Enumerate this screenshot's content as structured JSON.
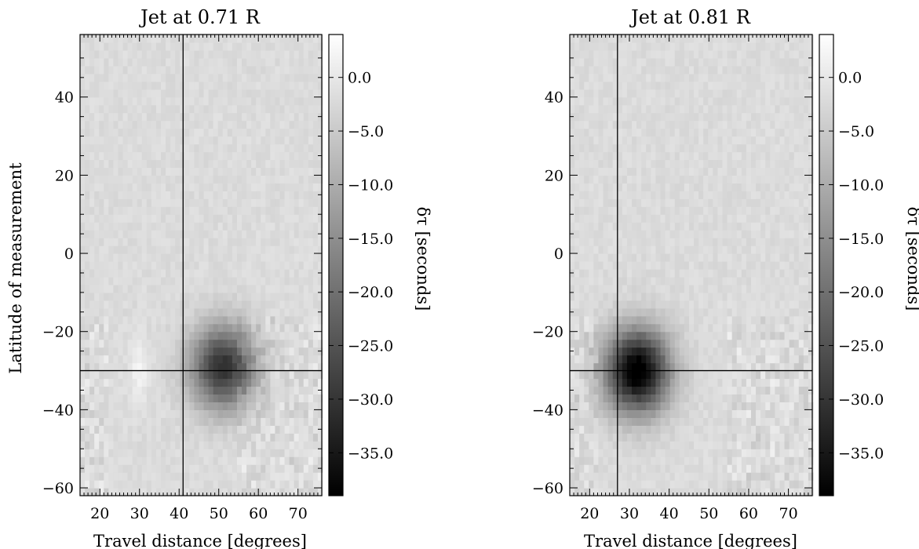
{
  "chart_data": [
    {
      "type": "heatmap",
      "title": "Jet at 0.71 R",
      "xlabel": "Travel distance [degrees]",
      "ylabel": "Latitude of measurement",
      "xlim": [
        15,
        76
      ],
      "ylim": [
        -62,
        56
      ],
      "x_ticks": [
        "20",
        "30",
        "40",
        "50",
        "60",
        "70"
      ],
      "y_ticks": [
        "40",
        "20",
        "0",
        "−20",
        "−40",
        "−60"
      ],
      "crosshair": {
        "x": 41,
        "y": -30
      },
      "blob": {
        "x": 51,
        "y": -29,
        "min": -29
      },
      "light_streak_x": 30,
      "colorbar": {
        "label": "δτ [seconds]",
        "range": [
          -39,
          4
        ],
        "ticks": [
          "0.0",
          "−5.0",
          "−10.0",
          "−15.0",
          "−20.0",
          "−25.0",
          "−30.0",
          "−35.0"
        ]
      }
    },
    {
      "type": "heatmap",
      "title": "Jet at 0.81 R",
      "xlabel": "Travel distance [degrees]",
      "ylabel": "",
      "xlim": [
        15,
        76
      ],
      "ylim": [
        -62,
        56
      ],
      "x_ticks": [
        "20",
        "30",
        "40",
        "50",
        "60",
        "70"
      ],
      "y_ticks": [
        "40",
        "20",
        "0",
        "−20",
        "−40",
        "−60"
      ],
      "crosshair": {
        "x": 27,
        "y": -30
      },
      "blob": {
        "x": 32,
        "y": -30,
        "min": -39
      },
      "light_streak_x": null,
      "colorbar": {
        "label": "δτ [seconds]",
        "range": [
          -39,
          4
        ],
        "ticks": [
          "0.0",
          "−5.0",
          "−10.0",
          "−15.0",
          "−20.0",
          "−25.0",
          "−30.0",
          "−35.0"
        ]
      }
    }
  ]
}
